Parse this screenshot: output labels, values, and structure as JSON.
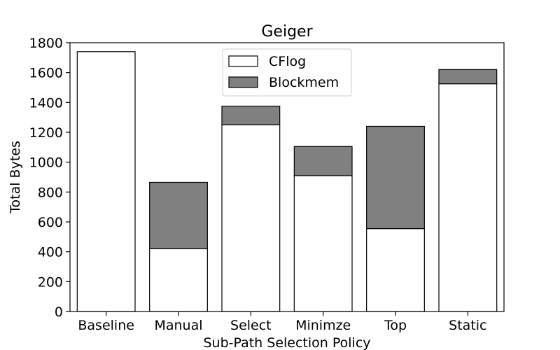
{
  "chart_data": {
    "type": "bar",
    "stacked": true,
    "title": "Geiger",
    "xlabel": "Sub-Path Selection Policy",
    "ylabel": "Total Bytes",
    "ylim": [
      0,
      1800
    ],
    "yticks": [
      0,
      200,
      400,
      600,
      800,
      1000,
      1200,
      1400,
      1600,
      1800
    ],
    "categories": [
      "Baseline",
      "Manual",
      "Select",
      "Minimze",
      "Top",
      "Static"
    ],
    "series": [
      {
        "name": "CFlog",
        "values": [
          1740,
          420,
          1250,
          910,
          555,
          1525
        ],
        "color": "#ffffff"
      },
      {
        "name": "Blockmem",
        "values": [
          0,
          445,
          125,
          195,
          685,
          95
        ],
        "color": "#808080"
      }
    ],
    "legend_position": "top-center",
    "grid": false
  }
}
